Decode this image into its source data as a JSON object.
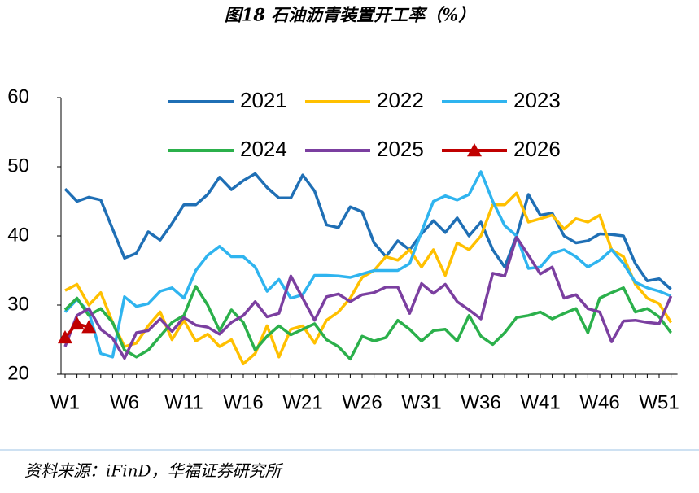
{
  "chart_data": {
    "type": "line",
    "title": "图18 石油沥青装置开工率（%）",
    "source": "资料来源：iFinD，华福证券研究所",
    "categories": [
      "W1",
      null,
      null,
      null,
      null,
      "W6",
      null,
      null,
      null,
      null,
      "W11",
      null,
      null,
      null,
      null,
      "W16",
      null,
      null,
      null,
      null,
      "W21",
      null,
      null,
      null,
      null,
      "W26",
      null,
      null,
      null,
      null,
      "W31",
      null,
      null,
      null,
      null,
      "W36",
      null,
      null,
      null,
      null,
      "W41",
      null,
      null,
      null,
      null,
      "W46",
      null,
      null,
      null,
      null,
      "W51",
      null
    ],
    "ylim": [
      20,
      60
    ],
    "yticks": [
      20,
      30,
      40,
      50,
      60
    ],
    "series": [
      {
        "name": "2021",
        "color": "#1f6fb5",
        "values": [
          46.8,
          45,
          45.6,
          45.2,
          41,
          36.8,
          37.5,
          40.6,
          39.4,
          41.8,
          44.5,
          44.5,
          46,
          48.5,
          46.7,
          48,
          49,
          47,
          45.5,
          45.5,
          48.8,
          46.5,
          41.6,
          41.2,
          44.2,
          43.5,
          39,
          37,
          39.3,
          38,
          40.3,
          42.2,
          40.5,
          42.6,
          40,
          42,
          38,
          35.5,
          40,
          46,
          43,
          43.3,
          40,
          39,
          39.3,
          40.3,
          40.2,
          40,
          36,
          33.5,
          33.8,
          32.3
        ]
      },
      {
        "name": "2022",
        "color": "#ffc000",
        "values": [
          32.1,
          33,
          30,
          31.8,
          27.5,
          24,
          24.5,
          27,
          29,
          25,
          27.8,
          24.8,
          25.8,
          24,
          25,
          21.5,
          23,
          27,
          22.5,
          26.5,
          27,
          24.5,
          27.8,
          29,
          31,
          34,
          35,
          37,
          36.5,
          38,
          35.5,
          38,
          34.3,
          39,
          38,
          40,
          44.5,
          44.5,
          46.2,
          42,
          42.5,
          43,
          41,
          42.5,
          42,
          43,
          38,
          37,
          33,
          31,
          30.2,
          27.5
        ]
      },
      {
        "name": "2023",
        "color": "#2fb4ef",
        "values": [
          29,
          30.8,
          29,
          23,
          22.5,
          31.2,
          29.8,
          30.2,
          32,
          32.5,
          31,
          35,
          37.2,
          38.5,
          37,
          37,
          35.5,
          32,
          33.7,
          31,
          31.5,
          34.3,
          34.3,
          34.2,
          34,
          34.5,
          35,
          35,
          35,
          36,
          40.6,
          45,
          45.8,
          45.2,
          46,
          49.3,
          45,
          41.5,
          40,
          35.3,
          35.5,
          37.5,
          38,
          37,
          35.5,
          36.5,
          38,
          36,
          33.3,
          32.5,
          32,
          31.3
        ]
      },
      {
        "name": "2024",
        "color": "#2bb04b",
        "values": [
          29.3,
          31,
          28.5,
          29.5,
          27.5,
          23.5,
          22.5,
          23.5,
          25.5,
          27.5,
          28.5,
          32.7,
          30,
          26.3,
          29.3,
          27.5,
          23.5,
          25.5,
          27,
          25.7,
          26.5,
          27.3,
          25,
          24,
          22.2,
          25.5,
          24.8,
          25.3,
          27.8,
          26.5,
          24.8,
          26.3,
          26.5,
          24.8,
          28.5,
          25.5,
          24.3,
          26,
          28.2,
          28.5,
          29,
          28,
          28.8,
          29.5,
          26,
          31,
          31.8,
          32.5,
          29,
          29.5,
          28.3,
          26
        ]
      },
      {
        "name": "2025",
        "color": "#7b3fa0",
        "values": [
          24,
          28.5,
          29.5,
          26.5,
          25.2,
          22.3,
          26,
          26.3,
          28,
          26.2,
          28.2,
          27.1,
          26.8,
          25.8,
          27.5,
          28.5,
          30.5,
          28.3,
          28.8,
          34.2,
          31,
          27.8,
          31.2,
          31.6,
          30.5,
          31.5,
          31.8,
          32.6,
          32.6,
          28.8,
          33.1,
          31.7,
          33,
          30.5,
          29.3,
          28,
          34.6,
          34.2,
          39.8,
          37.2,
          34.5,
          35.5,
          31,
          31.5,
          29.5,
          29,
          24.7,
          27.7,
          27.8,
          27.5,
          27.3,
          31.3
        ]
      },
      {
        "name": "2026",
        "color": "#c00000",
        "marker": "triangle",
        "values": [
          25.3,
          27.3,
          26.8,
          null,
          null,
          null,
          null,
          null,
          null,
          null,
          null,
          null,
          null,
          null,
          null,
          null,
          null,
          null,
          null,
          null,
          null,
          null,
          null,
          null,
          null,
          null,
          null,
          null,
          null,
          null,
          null,
          null,
          null,
          null,
          null,
          null,
          null,
          null,
          null,
          null,
          null,
          null,
          null,
          null,
          null,
          null,
          null,
          null,
          null,
          null,
          null,
          null
        ]
      }
    ]
  }
}
